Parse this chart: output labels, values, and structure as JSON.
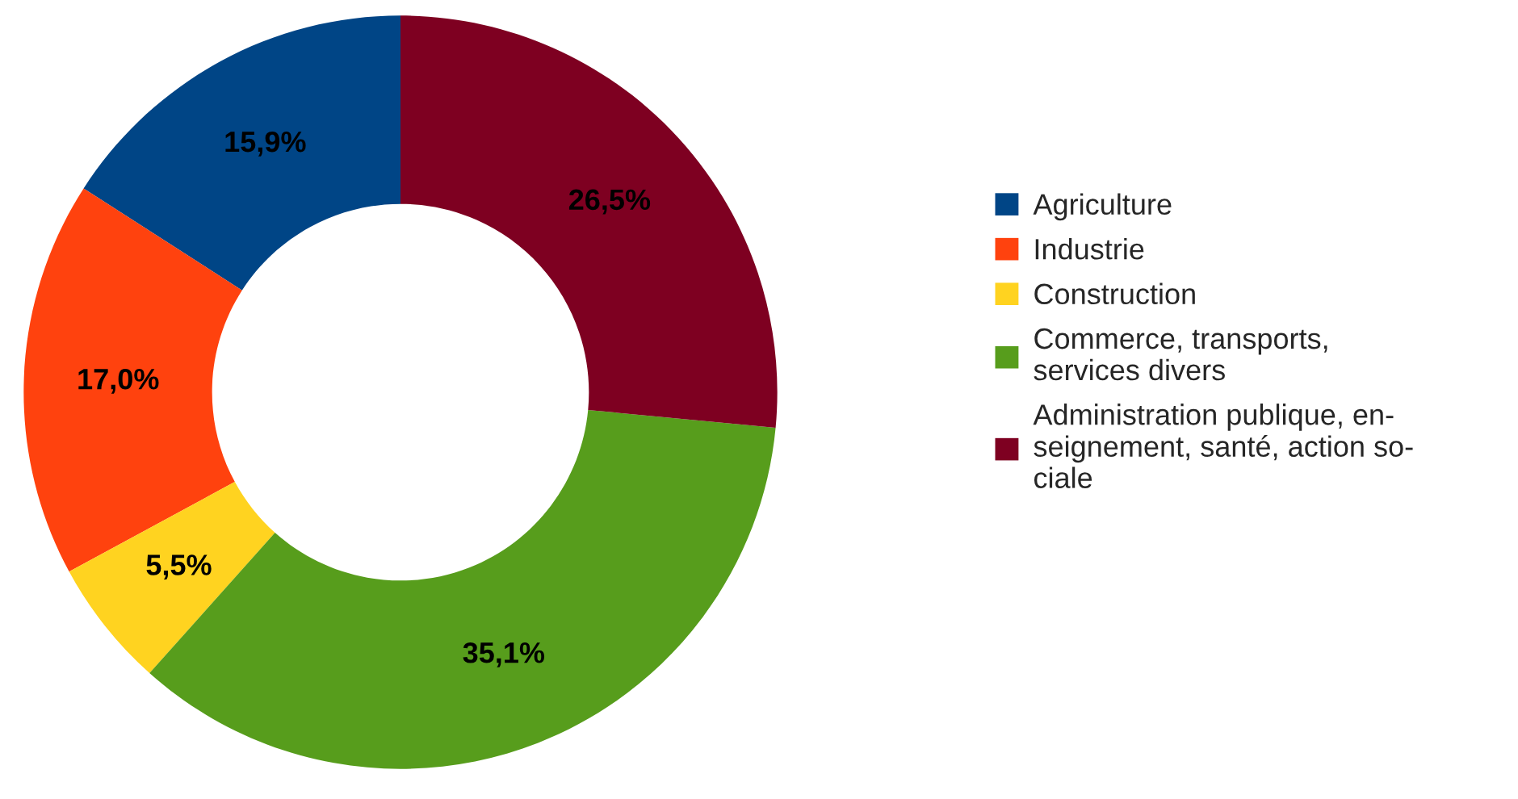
{
  "chart_data": {
    "type": "donut",
    "categories": [
      "Agriculture",
      "Industrie",
      "Construction",
      "Commerce, transports,\nservices divers",
      "Administration publique, en-\nseignement, santé, action so-\nciale"
    ],
    "values": [
      15.9,
      17.0,
      5.5,
      35.1,
      26.5
    ],
    "value_labels": [
      "15,9%",
      "17,0%",
      "5,5%",
      "35,1%",
      "26,5%"
    ],
    "colors": [
      "#004586",
      "#ff420e",
      "#ffd320",
      "#579d1c",
      "#7e0021"
    ],
    "legend": "right"
  }
}
